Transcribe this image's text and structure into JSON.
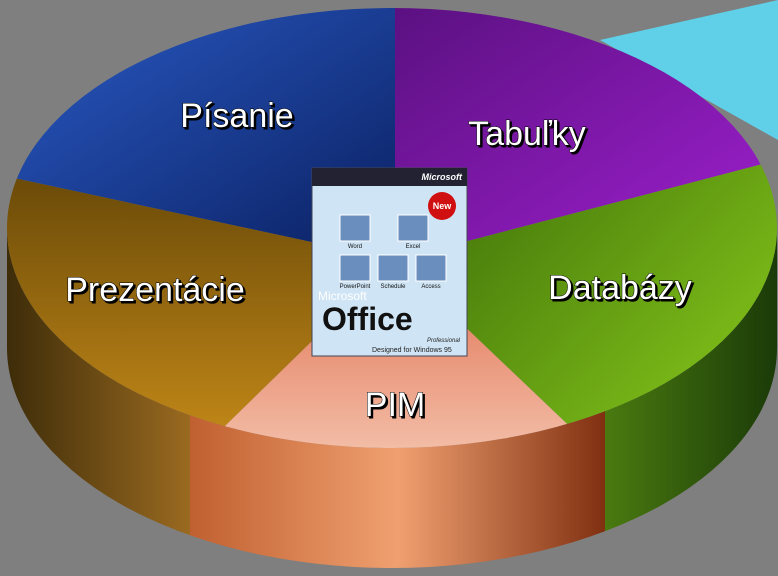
{
  "diagram": {
    "slices": [
      {
        "label": "Písanie"
      },
      {
        "label": "Tabuľky"
      },
      {
        "label": "Databázy"
      },
      {
        "label": "PIM"
      },
      {
        "label": "Prezentácie"
      }
    ],
    "product_box": {
      "brand": "Microsoft",
      "badge": "New",
      "name": "Office",
      "edition": "Professional",
      "footer": "Designed for Windows 95",
      "icons": [
        "Word",
        "Excel",
        "PowerPoint",
        "Schedule",
        "Access"
      ]
    }
  }
}
